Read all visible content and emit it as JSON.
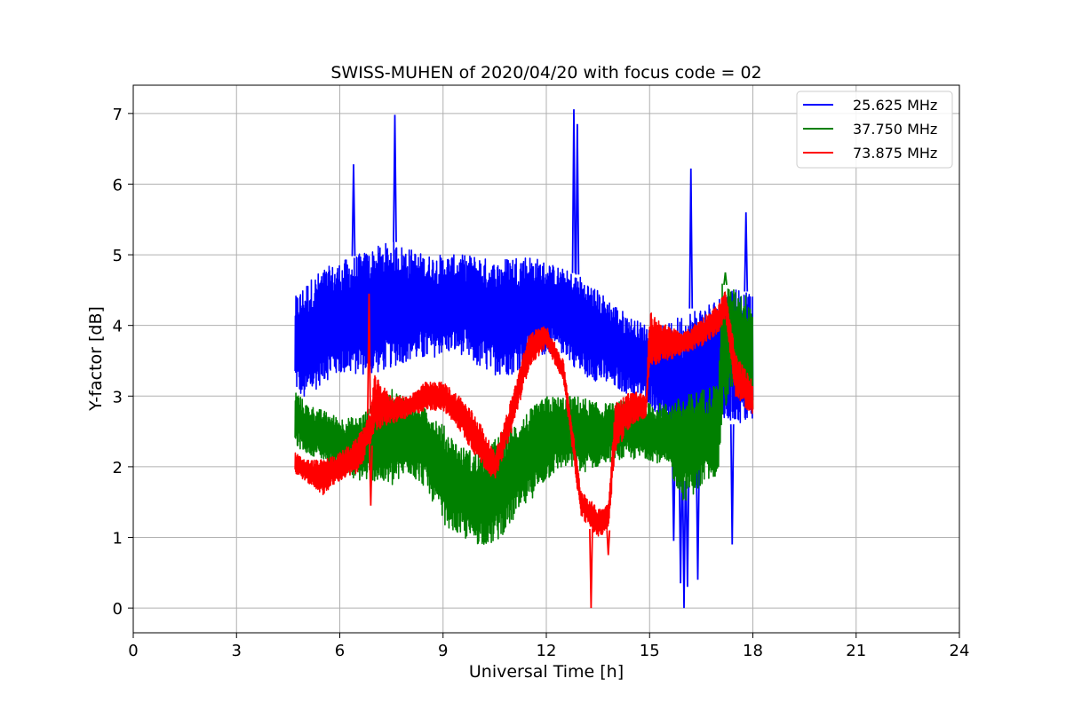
{
  "chart_data": {
    "type": "line",
    "title": "SWISS-MUHEN of 2020/04/20 with focus code = 02",
    "xlabel": "Universal Time [h]",
    "ylabel": "Y-factor [dB]",
    "xlim": [
      0,
      24
    ],
    "ylim": [
      -0.35,
      7.4
    ],
    "xticks": [
      0,
      3,
      6,
      9,
      12,
      15,
      18,
      21,
      24
    ],
    "yticks": [
      0,
      1,
      2,
      3,
      4,
      5,
      6,
      7
    ],
    "grid": true,
    "legend_position": "top-right",
    "series": [
      {
        "name": "25.625 MHz",
        "color": "#0000ff",
        "envelope": {
          "x": [
            4.7,
            5.0,
            5.5,
            6.0,
            6.5,
            7.0,
            7.5,
            8.0,
            8.5,
            9.0,
            9.5,
            10.0,
            10.5,
            11.0,
            11.5,
            12.0,
            12.5,
            13.0,
            13.5,
            14.0,
            14.5,
            15.0,
            15.5,
            16.0,
            16.5,
            17.0,
            17.5,
            18.0
          ],
          "low": [
            3.1,
            2.9,
            3.2,
            3.3,
            3.3,
            3.3,
            3.4,
            3.5,
            3.5,
            3.6,
            3.6,
            3.4,
            3.3,
            3.3,
            3.5,
            3.6,
            3.6,
            3.3,
            3.2,
            3.1,
            3.0,
            2.9,
            2.5,
            1.8,
            2.0,
            2.6,
            2.6,
            2.6
          ],
          "high": [
            4.4,
            4.6,
            4.8,
            4.9,
            5.0,
            5.1,
            5.2,
            5.1,
            5.0,
            5.0,
            5.0,
            5.0,
            4.9,
            5.0,
            5.0,
            4.9,
            4.8,
            4.7,
            4.5,
            4.3,
            4.1,
            4.0,
            4.0,
            4.2,
            4.3,
            4.4,
            4.6,
            4.4
          ]
        },
        "peaks": [
          [
            6.4,
            6.28
          ],
          [
            7.6,
            6.98
          ],
          [
            12.8,
            7.06
          ],
          [
            12.9,
            6.85
          ],
          [
            16.2,
            6.22
          ],
          [
            17.8,
            5.6
          ],
          [
            15.9,
            0.35
          ],
          [
            16.0,
            0.0
          ],
          [
            16.1,
            0.3
          ],
          [
            16.4,
            0.4
          ],
          [
            17.4,
            0.9
          ],
          [
            15.7,
            0.95
          ]
        ]
      },
      {
        "name": "37.750 MHz",
        "color": "#008000",
        "envelope": {
          "x": [
            4.7,
            5.0,
            5.5,
            6.0,
            6.5,
            7.0,
            7.5,
            8.0,
            8.5,
            9.0,
            9.5,
            10.0,
            10.5,
            11.0,
            11.5,
            12.0,
            12.5,
            13.0,
            13.5,
            14.0,
            14.5,
            15.0,
            15.5,
            16.0,
            16.5,
            17.0,
            17.1,
            17.5,
            18.0
          ],
          "low": [
            2.3,
            2.2,
            2.1,
            1.9,
            1.8,
            1.8,
            1.7,
            1.9,
            1.7,
            1.2,
            1.0,
            0.9,
            0.9,
            1.2,
            1.5,
            1.8,
            2.0,
            1.9,
            2.0,
            2.1,
            2.1,
            2.1,
            2.0,
            1.5,
            1.7,
            1.9,
            2.6,
            3.3,
            2.8
          ],
          "high": [
            3.1,
            2.9,
            2.8,
            2.7,
            2.7,
            2.9,
            3.1,
            3.0,
            2.9,
            2.6,
            2.3,
            2.2,
            2.4,
            2.6,
            2.8,
            3.0,
            3.0,
            3.0,
            2.9,
            2.9,
            3.0,
            2.9,
            2.9,
            3.0,
            3.1,
            3.2,
            4.6,
            4.5,
            4.4
          ]
        },
        "peaks": [
          [
            17.2,
            4.75
          ]
        ]
      },
      {
        "name": "73.875 MHz",
        "color": "#ff0000",
        "envelope": {
          "x": [
            4.7,
            5.0,
            5.5,
            6.0,
            6.5,
            6.9,
            7.0,
            7.5,
            8.0,
            8.5,
            9.0,
            9.5,
            10.0,
            10.5,
            11.0,
            11.5,
            12.0,
            12.5,
            13.0,
            13.5,
            13.8,
            14.0,
            14.5,
            14.9,
            15.0,
            15.5,
            16.0,
            16.5,
            17.0,
            17.2,
            17.5,
            18.0
          ],
          "low": [
            1.9,
            1.8,
            1.6,
            1.8,
            1.9,
            2.3,
            2.5,
            2.6,
            2.7,
            2.8,
            2.8,
            2.5,
            2.1,
            1.8,
            2.5,
            3.4,
            3.7,
            3.2,
            1.3,
            1.0,
            1.1,
            2.2,
            2.6,
            2.7,
            3.4,
            3.5,
            3.6,
            3.7,
            3.9,
            4.1,
            3.0,
            2.7
          ],
          "high": [
            2.2,
            2.1,
            2.1,
            2.2,
            2.4,
            2.8,
            3.3,
            3.0,
            3.0,
            3.2,
            3.2,
            3.0,
            2.7,
            2.2,
            3.0,
            3.9,
            4.0,
            3.5,
            1.7,
            1.4,
            1.5,
            2.9,
            3.1,
            3.0,
            4.2,
            4.0,
            3.9,
            4.1,
            4.3,
            4.5,
            3.6,
            3.2
          ]
        },
        "peaks": [
          [
            6.85,
            4.45
          ],
          [
            6.9,
            1.45
          ],
          [
            13.3,
            0.0
          ],
          [
            13.8,
            0.75
          ]
        ]
      }
    ]
  }
}
